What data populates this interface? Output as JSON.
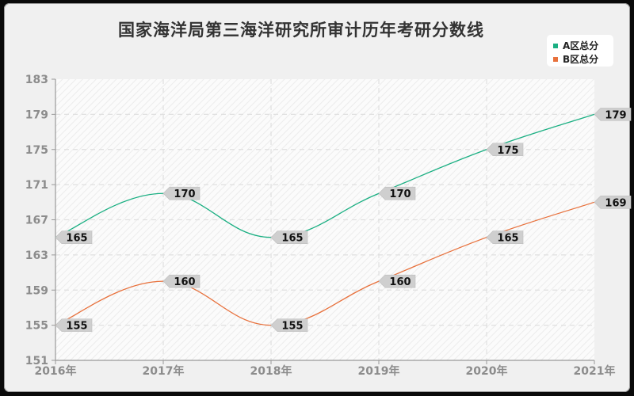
{
  "title": "国家海洋局第三海洋研究所审计历年考研分数线",
  "legend": {
    "items": [
      {
        "label": "A区总分",
        "color": "#1aaf82"
      },
      {
        "label": "B区总分",
        "color": "#e8713c"
      }
    ]
  },
  "axes": {
    "y_ticks": [
      "183",
      "179",
      "175",
      "171",
      "167",
      "163",
      "159",
      "155",
      "151"
    ],
    "x_ticks": [
      "2016年",
      "2017年",
      "2018年",
      "2019年",
      "2020年",
      "2021年"
    ]
  },
  "chart_data": {
    "type": "line",
    "title": "国家海洋局第三海洋研究所审计历年考研分数线",
    "xlabel": "",
    "ylabel": "",
    "categories": [
      "2016年",
      "2017年",
      "2018年",
      "2019年",
      "2020年",
      "2021年"
    ],
    "series": [
      {
        "name": "A区总分",
        "color": "#1aaf82",
        "values": [
          165,
          170,
          165,
          170,
          175,
          179
        ]
      },
      {
        "name": "B区总分",
        "color": "#e8713c",
        "values": [
          155,
          160,
          155,
          160,
          165,
          169
        ]
      }
    ],
    "ylim": [
      151,
      183
    ],
    "yticks": [
      151,
      155,
      159,
      163,
      167,
      171,
      175,
      179,
      183
    ],
    "grid": true,
    "legend_position": "top-right",
    "smooth": true,
    "data_labels": true
  }
}
